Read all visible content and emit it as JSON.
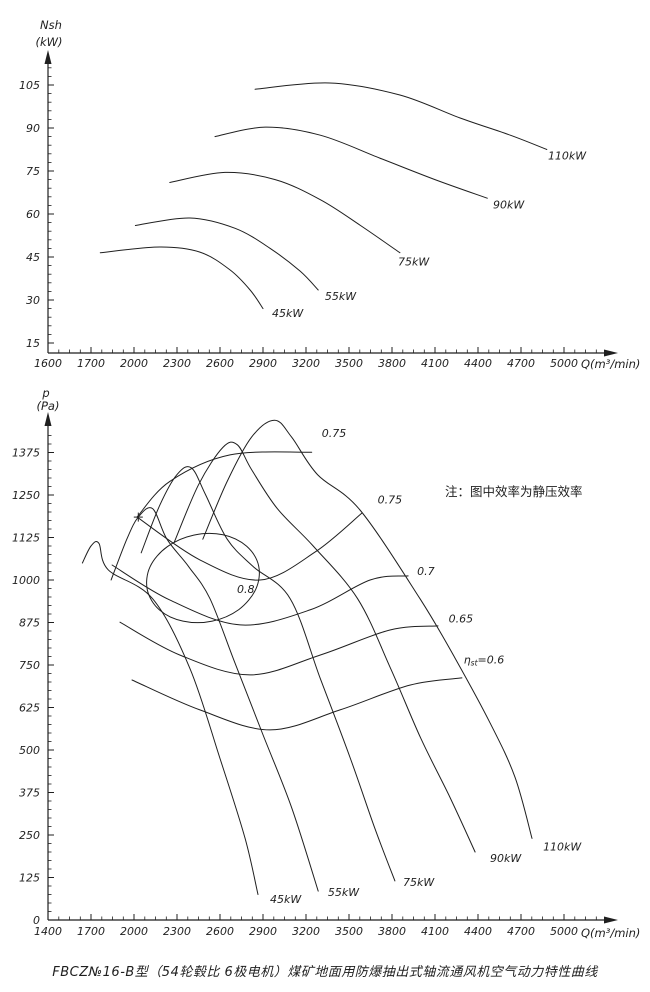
{
  "figure": {
    "caption": "FBCZ№16-B型（54轮毂比 6极电机）煤矿地面用防爆抽出式轴流通风机空气动力特性曲线",
    "background": "#ffffff",
    "ink": "#1f1f1f"
  },
  "chart_data": [
    {
      "id": "power-chart",
      "type": "line",
      "ylabel_lines": [
        "Nsh",
        "(kW)"
      ],
      "xlabel": "Q(m³/min)",
      "x_axis": {
        "labeled_ticks": [
          1600,
          1700,
          2000,
          2300,
          2600,
          2900,
          3200,
          3500,
          3800,
          4100,
          4400,
          4700,
          5000
        ]
      },
      "y_axis": {
        "labeled_ticks": [
          15,
          30,
          45,
          60,
          75,
          90,
          105
        ]
      },
      "series": [
        {
          "name": "45kW",
          "label_at": [
            2963,
            24
          ],
          "points": [
            [
              1765,
              46.5
            ],
            [
              2180,
              48.5
            ],
            [
              2460,
              46.7
            ],
            [
              2670,
              40.5
            ],
            [
              2810,
              33.5
            ],
            [
              2900,
              27
            ]
          ]
        },
        {
          "name": "55kW",
          "label_at": [
            3332,
            30
          ],
          "points": [
            [
              2010,
              56
            ],
            [
              2390,
              58.6
            ],
            [
              2705,
              55
            ],
            [
              2950,
              48
            ],
            [
              3160,
              40
            ],
            [
              3285,
              33.5
            ]
          ]
        },
        {
          "name": "75kW",
          "label_at": [
            3842,
            42
          ],
          "points": [
            [
              2250,
              71
            ],
            [
              2635,
              74.5
            ],
            [
              2985,
              72
            ],
            [
              3300,
              65
            ],
            [
              3580,
              56
            ],
            [
              3855,
              46.5
            ]
          ]
        },
        {
          "name": "90kW",
          "label_at": [
            4505,
            62
          ],
          "points": [
            [
              2565,
              87
            ],
            [
              2915,
              90.3
            ],
            [
              3300,
              87.5
            ],
            [
              3715,
              79.5
            ],
            [
              4100,
              72
            ],
            [
              4465,
              65.5
            ]
          ]
        },
        {
          "name": "110kW",
          "label_at": [
            4888,
            79
          ],
          "points": [
            [
              2845,
              103.5
            ],
            [
              3365,
              105.7
            ],
            [
              3855,
              101.5
            ],
            [
              4275,
              93.5
            ],
            [
              4625,
              87.5
            ],
            [
              4880,
              82.5
            ]
          ]
        }
      ]
    },
    {
      "id": "pressure-chart",
      "type": "line",
      "ylabel_lines": [
        "p",
        "(Pa)"
      ],
      "xlabel": "Q(m³/min)",
      "note": "注：图中效率为静压效率",
      "x_axis": {
        "labeled_ticks": [
          1400,
          1700,
          2000,
          2300,
          2600,
          2900,
          3200,
          3500,
          3800,
          4100,
          4400,
          4700,
          5000
        ]
      },
      "y_axis": {
        "labeled_ticks": [
          0,
          125,
          250,
          375,
          500,
          625,
          750,
          875,
          1000,
          1125,
          1250,
          1375
        ]
      },
      "stall_marker": [
        2030,
        1185
      ],
      "series": [
        {
          "name": "45kW",
          "label_at": [
            2949,
            50
          ],
          "points": [
            [
              1640,
              1050
            ],
            [
              1700,
              1100
            ],
            [
              1755,
              1108
            ],
            [
              1820,
              1030
            ],
            [
              2130,
              945
            ],
            [
              2390,
              740
            ],
            [
              2600,
              475
            ],
            [
              2775,
              240
            ],
            [
              2865,
              75
            ]
          ]
        },
        {
          "name": "55kW",
          "label_at": [
            3353,
            70
          ],
          "points": [
            [
              1840,
              1000
            ],
            [
              1950,
              1120
            ],
            [
              2030,
              1185
            ],
            [
              2130,
              1210
            ],
            [
              2230,
              1120
            ],
            [
              2380,
              1040
            ],
            [
              2530,
              945
            ],
            [
              2705,
              755
            ],
            [
              2895,
              550
            ],
            [
              3100,
              330
            ],
            [
              3285,
              85
            ]
          ]
        },
        {
          "name": "75kW",
          "label_at": [
            3877,
            100
          ],
          "points": [
            [
              2050,
              1080
            ],
            [
              2180,
              1220
            ],
            [
              2300,
              1310
            ],
            [
              2400,
              1330
            ],
            [
              2500,
              1250
            ],
            [
              2650,
              1120
            ],
            [
              2830,
              1040
            ],
            [
              3090,
              945
            ],
            [
              3300,
              710
            ],
            [
              3510,
              475
            ],
            [
              3680,
              270
            ],
            [
              3820,
              115
            ]
          ]
        },
        {
          "name": "90kW",
          "label_at": [
            4484,
            170
          ],
          "points": [
            [
              2280,
              1110
            ],
            [
              2450,
              1280
            ],
            [
              2620,
              1390
            ],
            [
              2720,
              1398
            ],
            [
              2820,
              1325
            ],
            [
              3000,
              1210
            ],
            [
              3250,
              1100
            ],
            [
              3560,
              945
            ],
            [
              3790,
              740
            ],
            [
              4000,
              535
            ],
            [
              4205,
              360
            ],
            [
              4380,
              200
            ]
          ]
        },
        {
          "name": "110kW",
          "label_at": [
            4854,
            205
          ],
          "points": [
            [
              2480,
              1120
            ],
            [
              2650,
              1290
            ],
            [
              2820,
              1420
            ],
            [
              2980,
              1470
            ],
            [
              3100,
              1420
            ],
            [
              3280,
              1310
            ],
            [
              3577,
              1206
            ],
            [
              3995,
              945
            ],
            [
              4240,
              770
            ],
            [
              4484,
              580
            ],
            [
              4658,
              420
            ],
            [
              4777,
              240
            ]
          ]
        }
      ],
      "efficiency_contours": [
        {
          "label": "0.75",
          "label_at": [
            3310,
            1420
          ],
          "points": [
            [
              2021,
              1185
            ],
            [
              2250,
              1290
            ],
            [
              2670,
              1368
            ],
            [
              3240,
              1376
            ]
          ]
        },
        {
          "label": "0.75",
          "label_at": [
            3700,
            1225
          ],
          "points": [
            [
              2021,
              1185
            ],
            [
              2460,
              1059
            ],
            [
              2879,
              1000
            ],
            [
              3263,
              1082
            ],
            [
              3591,
              1197
            ]
          ]
        },
        {
          "label": "0.7",
          "label_at": [
            3975,
            1015
          ],
          "points": [
            [
              1847,
              1044
            ],
            [
              2251,
              941
            ],
            [
              2740,
              868
            ],
            [
              3228,
              912
            ],
            [
              3647,
              1000
            ],
            [
              3912,
              1012
            ]
          ]
        },
        {
          "label": "0.65",
          "label_at": [
            4195,
            875
          ],
          "points": [
            [
              1902,
              876
            ],
            [
              2321,
              779
            ],
            [
              2809,
              721
            ],
            [
              3298,
              779
            ],
            [
              3786,
              853
            ],
            [
              4121,
              865
            ]
          ]
        },
        {
          "label": "ηst=0.6",
          "label_parts": [
            "η",
            "st",
            "=0.6"
          ],
          "label_at": [
            4300,
            755
          ],
          "points": [
            [
              1986,
              706
            ],
            [
              2460,
              618
            ],
            [
              2949,
              559
            ],
            [
              3437,
              618
            ],
            [
              3925,
              691
            ],
            [
              4288,
              712
            ]
          ]
        },
        {
          "label": "0.8",
          "closed": true,
          "label_at": [
            2719,
            962
          ],
          "points": [
            [
              2870,
              1041
            ],
            [
              2850,
              973
            ],
            [
              2731,
              913
            ],
            [
              2546,
              879
            ],
            [
              2342,
              879
            ],
            [
              2177,
              912
            ],
            [
              2093,
              971
            ],
            [
              2112,
              1039
            ],
            [
              2232,
              1098
            ],
            [
              2417,
              1132
            ],
            [
              2621,
              1133
            ],
            [
              2786,
              1099
            ]
          ]
        }
      ]
    }
  ]
}
